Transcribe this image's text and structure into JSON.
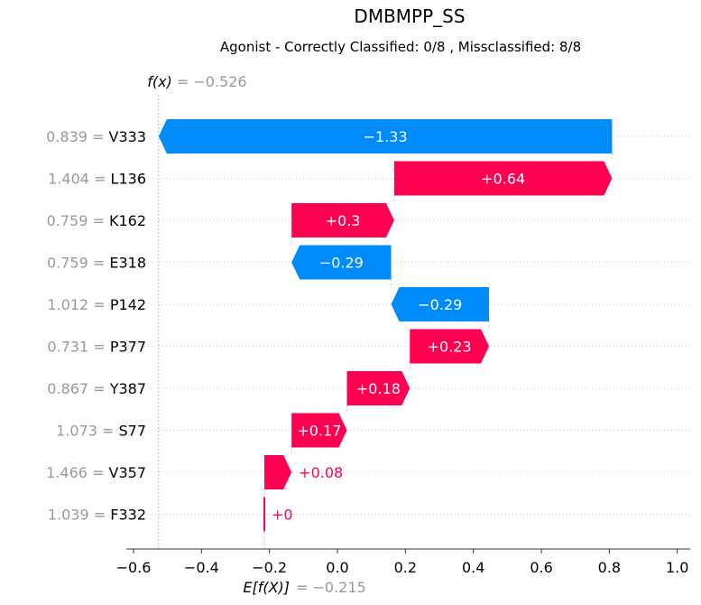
{
  "chart_data": {
    "type": "waterfall",
    "title": "DMBMPP_SS",
    "subtitle": "Agonist - Correctly Classified: 0/8 , Missclassified: 8/8",
    "fx_label": "f(x)",
    "fx_value_text": "= −0.526",
    "fx_value": -0.526,
    "efx_label": "E[f(X)]",
    "efx_value_text": "= −0.215",
    "efx_value": -0.215,
    "xlim": [
      -0.62,
      1.04
    ],
    "x_ticks": [
      {
        "v": -0.6,
        "label": "−0.6"
      },
      {
        "v": -0.4,
        "label": "−0.4"
      },
      {
        "v": -0.2,
        "label": "−0.2"
      },
      {
        "v": 0.0,
        "label": "0.0"
      },
      {
        "v": 0.2,
        "label": "0.2"
      },
      {
        "v": 0.4,
        "label": "0.4"
      },
      {
        "v": 0.6,
        "label": "0.6"
      },
      {
        "v": 0.8,
        "label": "0.8"
      },
      {
        "v": 1.0,
        "label": "1.0"
      }
    ],
    "bars": [
      {
        "value_text": "0.839",
        "feature": "V333",
        "start": 0.808,
        "end": -0.526,
        "label": "−1.33"
      },
      {
        "value_text": "1.404",
        "feature": "L136",
        "start": 0.167,
        "end": 0.808,
        "label": "+0.64"
      },
      {
        "value_text": "0.759",
        "feature": "K162",
        "start": -0.135,
        "end": 0.167,
        "label": "+0.3"
      },
      {
        "value_text": "0.759",
        "feature": "E318",
        "start": 0.158,
        "end": -0.135,
        "label": "−0.29"
      },
      {
        "value_text": "1.012",
        "feature": "P142",
        "start": 0.446,
        "end": 0.158,
        "label": "−0.29"
      },
      {
        "value_text": "0.731",
        "feature": "P377",
        "start": 0.213,
        "end": 0.446,
        "label": "+0.23"
      },
      {
        "value_text": "0.867",
        "feature": "Y387",
        "start": 0.028,
        "end": 0.213,
        "label": "+0.18"
      },
      {
        "value_text": "1.073",
        "feature": "S77",
        "start": -0.135,
        "end": 0.028,
        "label": "+0.17"
      },
      {
        "value_text": "1.466",
        "feature": "V357",
        "start": -0.215,
        "end": -0.135,
        "label": "+0.08"
      },
      {
        "value_text": "1.039",
        "feature": "F332",
        "start": -0.215,
        "end": -0.215,
        "label": "+0"
      }
    ],
    "colors": {
      "positive": "#ff0051",
      "negative": "#008bfb",
      "muted": "#999999"
    }
  }
}
